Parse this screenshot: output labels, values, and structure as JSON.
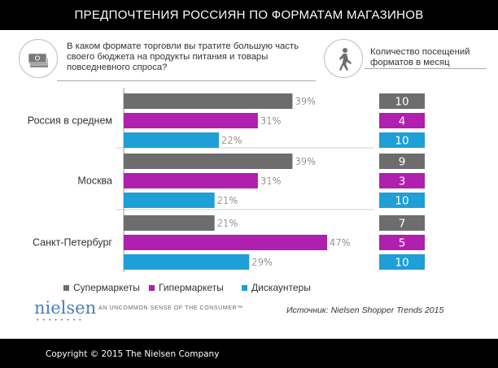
{
  "title": "ПРЕДПОЧТЕНИЯ РОССИЯН ПО ФОРМАТАМ МАГАЗИНОВ",
  "question_left": "В каком формате торговли вы тратите большую часть своего бюджета на продукты питания и товары повседневного спроса?",
  "question_right": "Количество посещений форматов в месяц",
  "legend": [
    "Супермаркеты",
    "Гипермаркеты",
    "Дискаунтеры"
  ],
  "source": "Источник: Nielsen Shopper Trends 2015",
  "logo_text": "nielsen",
  "tagline": "AN UNCOMMON SENSE OF THE CONSUMER™",
  "copyright": "Copyright © 2015 The Nielsen Company",
  "colors": {
    "supermarkets": "#6d6d6d",
    "hypermarkets": "#b01fae",
    "discounters": "#1e9fd6"
  },
  "icons": {
    "money": "money-stack-icon",
    "walker": "walking-person-icon"
  },
  "chart_data": {
    "type": "bar",
    "orientation": "horizontal",
    "categories": [
      "Россия в среднем",
      "Москва",
      "Санкт-Петербург"
    ],
    "series": [
      {
        "name": "Супермаркеты",
        "values": [
          39,
          39,
          21
        ],
        "labels": [
          "39%",
          "39%",
          "21%"
        ]
      },
      {
        "name": "Гипермаркеты",
        "values": [
          31,
          31,
          47
        ],
        "labels": [
          "31%",
          "31%",
          "47%"
        ]
      },
      {
        "name": "Дискаунтеры",
        "values": [
          22,
          21,
          29
        ],
        "labels": [
          "22%",
          "21%",
          "29%"
        ]
      }
    ],
    "xlim": [
      0,
      47
    ],
    "visits_per_month": [
      {
        "category": "Россия в среднем",
        "values": [
          10,
          4,
          10
        ]
      },
      {
        "category": "Москва",
        "values": [
          9,
          3,
          10
        ]
      },
      {
        "category": "Санкт-Петербург",
        "values": [
          7,
          5,
          10
        ]
      }
    ]
  }
}
